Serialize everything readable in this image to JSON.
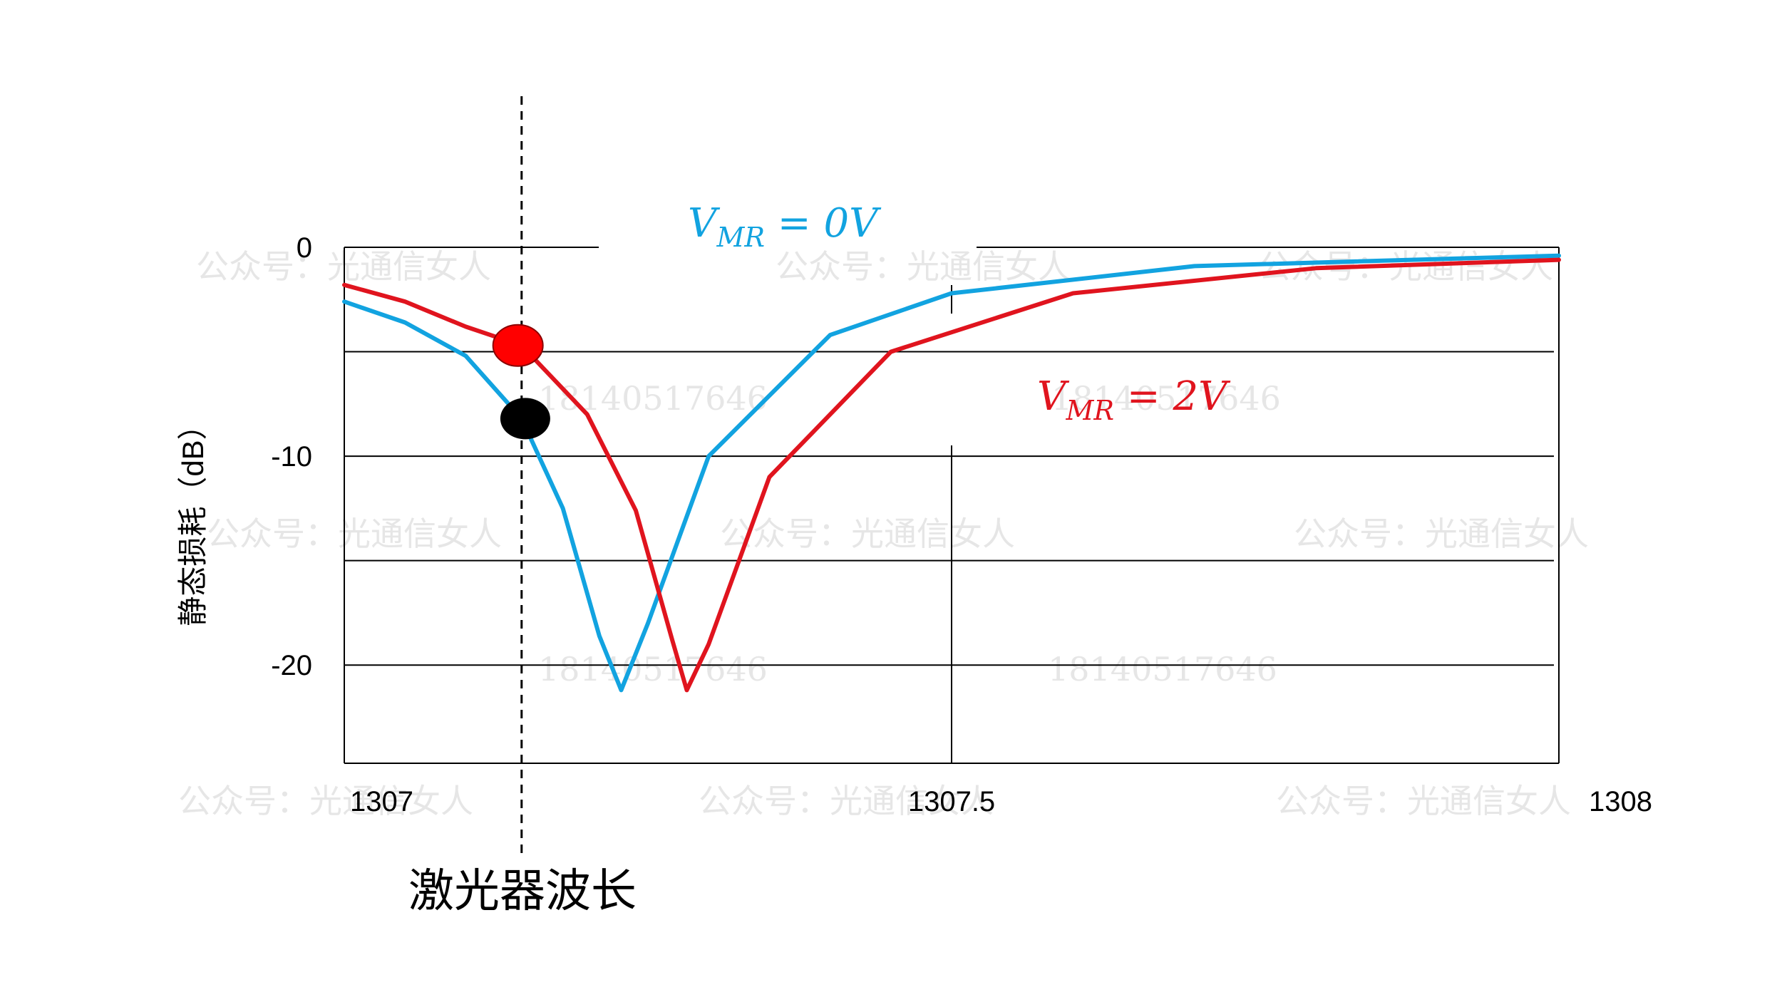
{
  "chart_data": {
    "type": "line",
    "xlabel": "激光器波长",
    "ylabel": "静态损耗（dB）",
    "xlim": [
      1307,
      1308
    ],
    "ylim": [
      -24.7,
      0
    ],
    "x_ticks": [
      {
        "value": 1307,
        "label": "1307"
      },
      {
        "value": 1307.5,
        "label": "1307.5"
      },
      {
        "value": 1308,
        "label": "1308"
      }
    ],
    "y_ticks": [
      {
        "value": 0,
        "label": "0"
      },
      {
        "value": -10,
        "label": "-10"
      },
      {
        "value": -20,
        "label": "-20"
      }
    ],
    "y_gridlines": [
      0,
      -5,
      -10,
      -15,
      -20
    ],
    "series": [
      {
        "name": "V_MR = 0V",
        "label_main": "V",
        "label_sub": "MR",
        "label_rest": " = 0V",
        "color": "#12a3e0",
        "resonance_x": 1307.228,
        "min_db": -21.2,
        "points": [
          [
            1307.0,
            -2.6
          ],
          [
            1307.05,
            -3.6
          ],
          [
            1307.1,
            -5.2
          ],
          [
            1307.146,
            -8.2
          ],
          [
            1307.18,
            -12.5
          ],
          [
            1307.21,
            -18.6
          ],
          [
            1307.228,
            -21.2
          ],
          [
            1307.25,
            -18.0
          ],
          [
            1307.3,
            -10.0
          ],
          [
            1307.4,
            -4.2
          ],
          [
            1307.5,
            -2.2
          ],
          [
            1307.7,
            -0.9
          ],
          [
            1308.0,
            -0.4
          ]
        ]
      },
      {
        "name": "V_MR = 2V",
        "label_main": "V",
        "label_sub": "MR",
        "label_rest": " = 2V",
        "color": "#e0141e",
        "resonance_x": 1307.282,
        "min_db": -21.2,
        "points": [
          [
            1307.0,
            -1.8
          ],
          [
            1307.05,
            -2.6
          ],
          [
            1307.1,
            -3.8
          ],
          [
            1307.146,
            -4.7
          ],
          [
            1307.2,
            -8.0
          ],
          [
            1307.24,
            -12.6
          ],
          [
            1307.27,
            -18.8
          ],
          [
            1307.282,
            -21.2
          ],
          [
            1307.3,
            -19.0
          ],
          [
            1307.35,
            -11.0
          ],
          [
            1307.45,
            -5.0
          ],
          [
            1307.6,
            -2.2
          ],
          [
            1307.8,
            -1.0
          ],
          [
            1308.0,
            -0.6
          ]
        ]
      }
    ],
    "marker_line_x": 1307.146,
    "markers": [
      {
        "series": "V_MR = 2V",
        "x": 1307.146,
        "y": -4.7,
        "color": "#ff0000"
      },
      {
        "series": "V_MR = 0V",
        "x": 1307.146,
        "y": -8.2,
        "color": "#000000"
      }
    ],
    "watermark": [
      "公众号：光通信女人",
      "18140517646"
    ]
  }
}
